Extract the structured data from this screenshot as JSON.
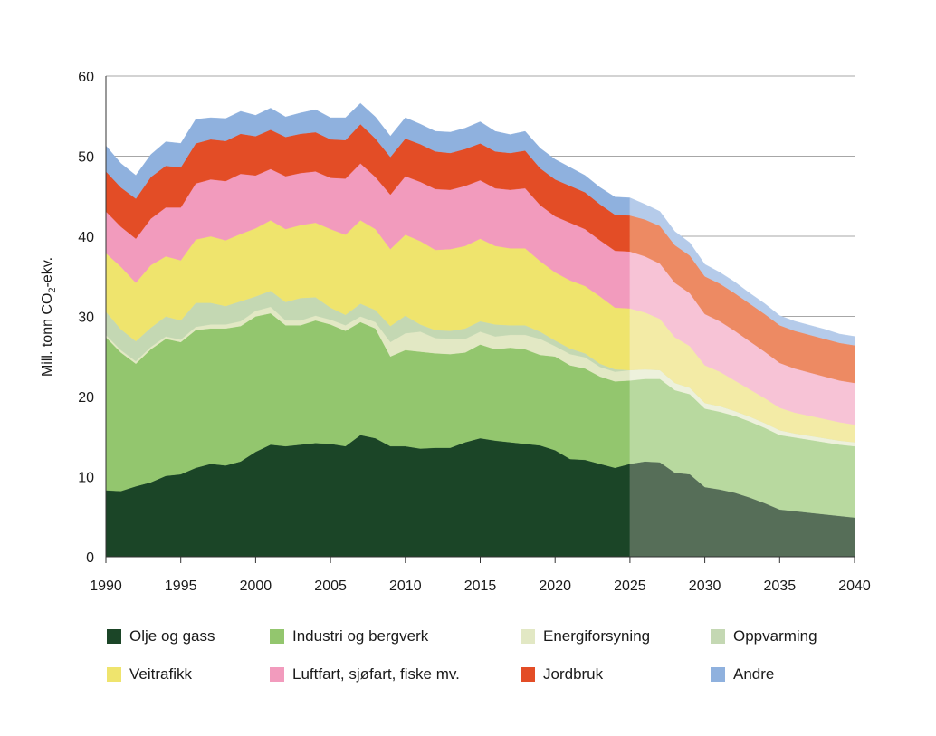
{
  "chart_data": {
    "type": "area",
    "stacked": true,
    "title": "",
    "xlabel": "",
    "ylabel": "Mill. tonn CO",
    "ylabel_sub": "2",
    "ylabel_suffix": "-ekv.",
    "ylim": [
      0,
      60
    ],
    "xlim": [
      1990,
      2040
    ],
    "yticks": [
      0,
      10,
      20,
      30,
      40,
      50,
      60
    ],
    "xticks": [
      1990,
      1995,
      2000,
      2005,
      2010,
      2015,
      2020,
      2025,
      2030,
      2035,
      2040
    ],
    "grid": "horizontal",
    "legend_position": "bottom",
    "projection_start": 2025,
    "x": [
      1990,
      1991,
      1992,
      1993,
      1994,
      1995,
      1996,
      1997,
      1998,
      1999,
      2000,
      2001,
      2002,
      2003,
      2004,
      2005,
      2006,
      2007,
      2008,
      2009,
      2010,
      2011,
      2012,
      2013,
      2014,
      2015,
      2016,
      2017,
      2018,
      2019,
      2020,
      2021,
      2022,
      2023,
      2024,
      2025,
      2026,
      2027,
      2028,
      2029,
      2030,
      2031,
      2032,
      2033,
      2034,
      2035,
      2036,
      2037,
      2038,
      2039,
      2040
    ],
    "series": [
      {
        "name": "Olje og gass",
        "color": "#1b4527",
        "projected_color": "#566e58",
        "values": [
          8.3,
          8.2,
          8.8,
          9.3,
          10.1,
          10.3,
          11.1,
          11.6,
          11.4,
          11.9,
          13.1,
          14.0,
          13.8,
          14.0,
          14.2,
          14.1,
          13.8,
          15.2,
          14.8,
          13.8,
          13.8,
          13.5,
          13.6,
          13.6,
          14.3,
          14.8,
          14.5,
          14.3,
          14.1,
          13.9,
          13.3,
          12.2,
          12.1,
          11.6,
          11.1,
          11.6,
          11.9,
          11.8,
          10.5,
          10.3,
          8.7,
          8.4,
          8.0,
          7.4,
          6.7,
          5.9,
          5.7,
          5.5,
          5.3,
          5.1,
          4.9
        ]
      },
      {
        "name": "Industri og bergverk",
        "color": "#93c66e",
        "projected_color": "#b8d99f",
        "values": [
          19.1,
          17.3,
          15.3,
          16.6,
          17.1,
          16.5,
          17.2,
          16.9,
          17.1,
          16.9,
          16.9,
          16.4,
          15.1,
          14.9,
          15.3,
          14.9,
          14.4,
          14.1,
          13.7,
          11.2,
          12.0,
          12.1,
          11.8,
          11.7,
          11.2,
          11.7,
          11.4,
          11.8,
          11.8,
          11.3,
          11.7,
          11.7,
          11.4,
          10.9,
          10.8,
          10.4,
          10.3,
          10.4,
          10.3,
          10.0,
          9.8,
          9.7,
          9.6,
          9.5,
          9.4,
          9.3,
          9.2,
          9.1,
          9.0,
          8.9,
          8.9
        ]
      },
      {
        "name": "Energiforsyning",
        "color": "#e2e8c4",
        "projected_color": "#edf1dc",
        "values": [
          0.3,
          0.3,
          0.3,
          0.3,
          0.3,
          0.3,
          0.4,
          0.5,
          0.5,
          0.6,
          0.7,
          0.8,
          0.6,
          0.6,
          0.6,
          0.6,
          0.7,
          0.7,
          0.8,
          1.8,
          2.1,
          2.5,
          1.9,
          1.9,
          1.7,
          1.6,
          1.6,
          1.6,
          1.8,
          2.0,
          1.3,
          1.4,
          1.4,
          1.2,
          1.2,
          1.3,
          1.2,
          1.1,
          0.9,
          0.8,
          0.7,
          0.7,
          0.6,
          0.6,
          0.6,
          0.6,
          0.5,
          0.5,
          0.5,
          0.5,
          0.5
        ]
      },
      {
        "name": "Oppvarming",
        "color": "#c4d8b3",
        "projected_color": "#d8e6cb",
        "values": [
          2.9,
          2.6,
          2.5,
          2.4,
          2.5,
          2.4,
          3.0,
          2.7,
          2.3,
          2.5,
          1.8,
          2.0,
          2.3,
          2.8,
          2.3,
          1.5,
          1.3,
          1.6,
          1.5,
          2.0,
          2.2,
          0.9,
          1.0,
          1.0,
          1.3,
          1.3,
          1.5,
          1.2,
          1.2,
          0.9,
          0.7,
          0.7,
          0.5,
          0.4,
          0.3,
          0.0,
          0.0,
          0.0,
          0.0,
          0.0,
          0.0,
          0.0,
          0.0,
          0.0,
          0.0,
          0.0,
          0.0,
          0.0,
          0.0,
          0.0,
          0.0
        ]
      },
      {
        "name": "Veitrafikk",
        "color": "#efe46d",
        "projected_color": "#f3eba6",
        "values": [
          7.3,
          7.8,
          7.3,
          7.8,
          7.5,
          7.5,
          7.9,
          8.3,
          8.2,
          8.4,
          8.5,
          8.8,
          9.1,
          9.1,
          9.3,
          9.8,
          10.0,
          10.4,
          10.1,
          9.6,
          10.1,
          10.4,
          10.0,
          10.2,
          10.3,
          10.3,
          9.8,
          9.6,
          9.6,
          8.8,
          8.5,
          8.5,
          8.4,
          8.4,
          7.7,
          7.7,
          7.1,
          6.4,
          5.7,
          5.2,
          4.7,
          4.3,
          3.8,
          3.4,
          3.1,
          2.8,
          2.6,
          2.5,
          2.4,
          2.3,
          2.2
        ]
      },
      {
        "name": "Luftfart, sjøfart, fiske mv.",
        "color": "#f29bbd",
        "projected_color": "#f7c3d6",
        "values": [
          5.2,
          5.0,
          5.5,
          5.8,
          6.1,
          6.6,
          7.0,
          7.1,
          7.4,
          7.5,
          6.6,
          6.4,
          6.6,
          6.5,
          6.4,
          6.4,
          7.0,
          7.1,
          6.5,
          6.8,
          7.3,
          7.4,
          7.6,
          7.4,
          7.5,
          7.3,
          7.2,
          7.3,
          7.5,
          7.0,
          7.0,
          7.2,
          7.1,
          7.0,
          7.1,
          7.1,
          7.0,
          6.9,
          6.8,
          6.6,
          6.4,
          6.3,
          6.2,
          6.0,
          5.8,
          5.6,
          5.5,
          5.4,
          5.3,
          5.2,
          5.2
        ]
      },
      {
        "name": "Jordbruk",
        "color": "#e34d26",
        "projected_color": "#ed8a63",
        "values": [
          5.0,
          4.9,
          5.0,
          5.2,
          5.2,
          5.0,
          5.0,
          5.0,
          5.0,
          5.0,
          4.9,
          4.9,
          4.9,
          4.9,
          4.9,
          4.8,
          4.8,
          4.9,
          4.8,
          4.7,
          4.7,
          4.7,
          4.7,
          4.6,
          4.6,
          4.6,
          4.6,
          4.6,
          4.7,
          4.6,
          4.6,
          4.6,
          4.6,
          4.5,
          4.5,
          4.5,
          4.6,
          4.7,
          4.7,
          4.7,
          4.7,
          4.7,
          4.7,
          4.7,
          4.7,
          4.7,
          4.7,
          4.7,
          4.7,
          4.7,
          4.7
        ]
      },
      {
        "name": "Andre",
        "color": "#8fb1de",
        "projected_color": "#b5cbea",
        "values": [
          3.2,
          3.0,
          2.9,
          2.8,
          3.0,
          3.0,
          3.0,
          2.7,
          2.8,
          2.8,
          2.6,
          2.7,
          2.5,
          2.6,
          2.8,
          2.7,
          2.8,
          2.6,
          2.7,
          2.6,
          2.6,
          2.5,
          2.5,
          2.6,
          2.6,
          2.7,
          2.5,
          2.3,
          2.4,
          2.5,
          2.5,
          2.3,
          2.1,
          2.1,
          2.2,
          2.2,
          1.9,
          1.8,
          1.7,
          1.6,
          1.5,
          1.4,
          1.4,
          1.3,
          1.3,
          1.2,
          1.2,
          1.2,
          1.2,
          1.1,
          1.1
        ]
      }
    ]
  }
}
